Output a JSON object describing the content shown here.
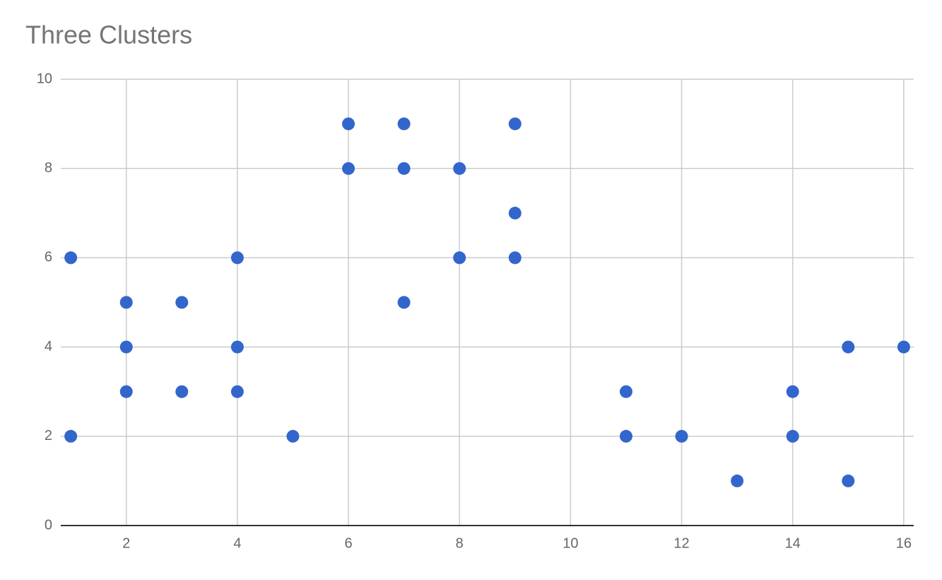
{
  "chart_data": {
    "type": "scatter",
    "title": "Three Clusters",
    "x": [
      1,
      1,
      2,
      2,
      2,
      3,
      3,
      4,
      4,
      4,
      5,
      6,
      6,
      7,
      7,
      7,
      8,
      8,
      9,
      9,
      9,
      11,
      11,
      12,
      13,
      14,
      14,
      15,
      15,
      16
    ],
    "values": [
      6,
      2,
      5,
      4,
      3,
      5,
      3,
      6,
      4,
      3,
      2,
      9,
      8,
      9,
      8,
      5,
      8,
      6,
      9,
      7,
      6,
      3,
      2,
      2,
      1,
      3,
      2,
      4,
      1,
      4
    ],
    "color": "#3366cc",
    "xlim": [
      0.82,
      16.18
    ],
    "xticks": [
      2,
      4,
      6,
      8,
      10,
      12,
      14,
      16
    ],
    "ylim": [
      0,
      10
    ],
    "yticks": [
      0,
      2,
      4,
      6,
      8,
      10
    ],
    "grid": true
  }
}
